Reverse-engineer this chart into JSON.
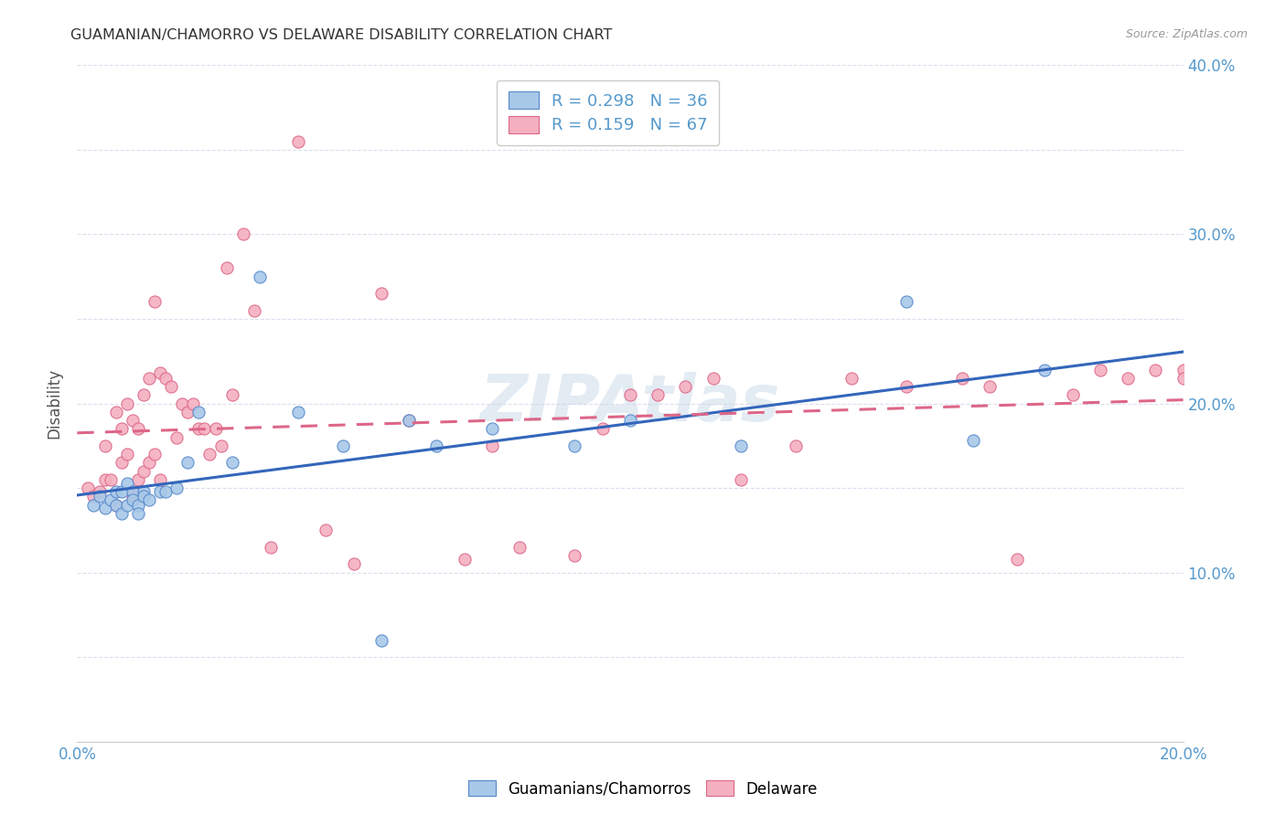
{
  "title": "GUAMANIAN/CHAMORRO VS DELAWARE DISABILITY CORRELATION CHART",
  "source": "Source: ZipAtlas.com",
  "ylabel_label": "Disability",
  "xlim": [
    0.0,
    0.2
  ],
  "ylim": [
    0.0,
    0.4
  ],
  "xticks": [
    0.0,
    0.025,
    0.05,
    0.075,
    0.1,
    0.125,
    0.15,
    0.175,
    0.2
  ],
  "yticks": [
    0.0,
    0.05,
    0.1,
    0.15,
    0.2,
    0.25,
    0.3,
    0.35,
    0.4
  ],
  "xticklabels": [
    "0.0%",
    "",
    "",
    "",
    "",
    "",
    "",
    "",
    "20.0%"
  ],
  "yticklabels_right": [
    "",
    "",
    "10.0%",
    "",
    "20.0%",
    "",
    "30.0%",
    "",
    "40.0%"
  ],
  "blue_R": 0.298,
  "blue_N": 36,
  "pink_R": 0.159,
  "pink_N": 67,
  "blue_color": "#a8c8e8",
  "pink_color": "#f4b0c0",
  "blue_edge_color": "#5588cc",
  "pink_edge_color": "#dd6688",
  "blue_line_color": "#3366bb",
  "pink_line_color": "#dd6688",
  "watermark": "ZIPAtlas",
  "background_color": "#ffffff",
  "grid_color": "#ddddee",
  "tick_color": "#5599cc",
  "legend_label_color": "#5599cc",
  "blue_scatter_x": [
    0.003,
    0.004,
    0.005,
    0.006,
    0.007,
    0.007,
    0.008,
    0.008,
    0.009,
    0.009,
    0.01,
    0.01,
    0.011,
    0.011,
    0.012,
    0.012,
    0.013,
    0.015,
    0.016,
    0.018,
    0.02,
    0.022,
    0.028,
    0.033,
    0.04,
    0.048,
    0.055,
    0.06,
    0.065,
    0.075,
    0.09,
    0.1,
    0.12,
    0.15,
    0.162,
    0.175
  ],
  "blue_scatter_y": [
    0.14,
    0.145,
    0.138,
    0.143,
    0.14,
    0.148,
    0.135,
    0.148,
    0.14,
    0.153,
    0.148,
    0.143,
    0.14,
    0.135,
    0.148,
    0.145,
    0.143,
    0.148,
    0.148,
    0.15,
    0.165,
    0.195,
    0.165,
    0.275,
    0.195,
    0.175,
    0.06,
    0.19,
    0.175,
    0.185,
    0.175,
    0.19,
    0.175,
    0.26,
    0.178,
    0.22
  ],
  "pink_scatter_x": [
    0.002,
    0.003,
    0.004,
    0.005,
    0.005,
    0.006,
    0.007,
    0.007,
    0.008,
    0.008,
    0.009,
    0.009,
    0.01,
    0.01,
    0.011,
    0.011,
    0.012,
    0.012,
    0.013,
    0.013,
    0.014,
    0.014,
    0.015,
    0.015,
    0.016,
    0.017,
    0.018,
    0.019,
    0.02,
    0.021,
    0.022,
    0.023,
    0.024,
    0.025,
    0.026,
    0.027,
    0.028,
    0.03,
    0.032,
    0.035,
    0.04,
    0.045,
    0.05,
    0.055,
    0.06,
    0.07,
    0.075,
    0.08,
    0.09,
    0.095,
    0.1,
    0.105,
    0.11,
    0.115,
    0.12,
    0.13,
    0.14,
    0.15,
    0.16,
    0.165,
    0.17,
    0.18,
    0.185,
    0.19,
    0.195,
    0.2,
    0.2
  ],
  "pink_scatter_y": [
    0.15,
    0.145,
    0.148,
    0.155,
    0.175,
    0.155,
    0.14,
    0.195,
    0.165,
    0.185,
    0.17,
    0.2,
    0.145,
    0.19,
    0.155,
    0.185,
    0.16,
    0.205,
    0.165,
    0.215,
    0.17,
    0.26,
    0.155,
    0.218,
    0.215,
    0.21,
    0.18,
    0.2,
    0.195,
    0.2,
    0.185,
    0.185,
    0.17,
    0.185,
    0.175,
    0.28,
    0.205,
    0.3,
    0.255,
    0.115,
    0.355,
    0.125,
    0.105,
    0.265,
    0.19,
    0.108,
    0.175,
    0.115,
    0.11,
    0.185,
    0.205,
    0.205,
    0.21,
    0.215,
    0.155,
    0.175,
    0.215,
    0.21,
    0.215,
    0.21,
    0.108,
    0.205,
    0.22,
    0.215,
    0.22,
    0.22,
    0.215
  ]
}
